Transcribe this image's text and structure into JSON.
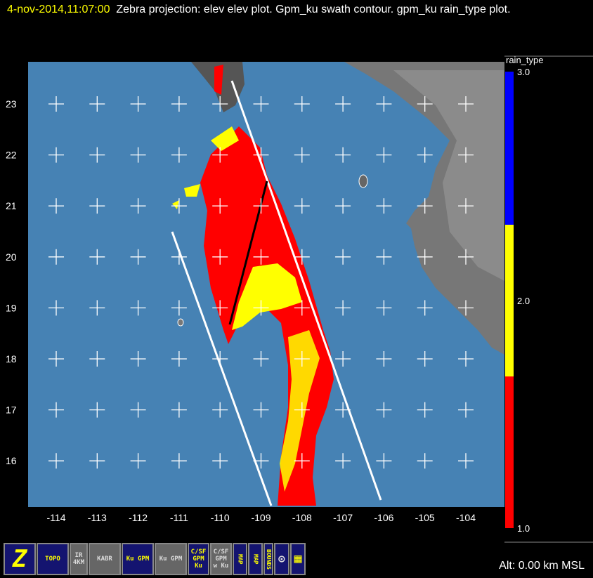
{
  "title": {
    "timestamp": "4-nov-2014,11:07:00",
    "description": "Zebra projection: elev elev  plot.  Gpm_ku swath contour.  gpm_ku rain_type plot."
  },
  "map": {
    "ocean_color": "#4682b4",
    "lon_ticks": [
      "-114",
      "-113",
      "-112",
      "-111",
      "-110",
      "-109",
      "-108",
      "-107",
      "-106",
      "-105",
      "-104"
    ],
    "lat_ticks": [
      "23",
      "22",
      "21",
      "20",
      "19",
      "18",
      "17",
      "16"
    ]
  },
  "colorbar": {
    "title": "rain_type",
    "labels": [
      "3.0",
      "2.0",
      "1.0"
    ],
    "colors": {
      "3": "#0000ff",
      "2": "#ffff00",
      "1": "#ff0000"
    }
  },
  "status": {
    "altitude": "Alt: 0.00 km MSL"
  },
  "toolbar": [
    {
      "icon": "zebra-z-icon",
      "label": "Z"
    },
    {
      "icon": "topo-icon",
      "label": "TOPO"
    },
    {
      "icon": "ir-satellite-icon",
      "label": "IR 4KM"
    },
    {
      "icon": "radar-kabr-icon",
      "label": "KABR"
    },
    {
      "icon": "gpm-ku-icon",
      "label": "Ku GPM"
    },
    {
      "icon": "gpm-ku-disabled-icon",
      "label": "Ku GPM"
    },
    {
      "icon": "csf-gpm-ku-icon",
      "label": "C/SF GPM Ku"
    },
    {
      "icon": "csf-gpm-wku-icon",
      "label": "C/SF GPM w Ku"
    },
    {
      "icon": "map-icon",
      "label": "MAP"
    },
    {
      "icon": "map-icon",
      "label": "MAP"
    },
    {
      "icon": "bounds-icon",
      "label": "BOUNDS"
    },
    {
      "icon": "circle-target-icon",
      "label": ""
    },
    {
      "icon": "grid-icon",
      "label": ""
    }
  ]
}
